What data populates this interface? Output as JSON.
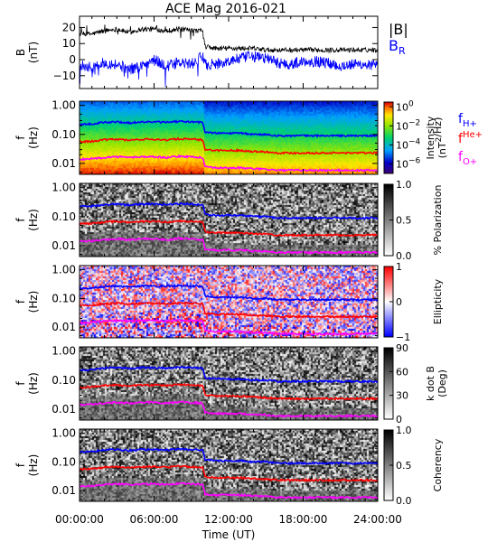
{
  "figure": {
    "title": "ACE Mag 2016-021",
    "xlabel": "Time (UT)",
    "x_ticks": [
      "00:00:00",
      "06:00:00",
      "12:00:00",
      "18:00:00",
      "24:00:00"
    ],
    "x_range_hours": [
      0,
      24
    ]
  },
  "colors": {
    "B_total": "#000000",
    "B_R": "#0000ff",
    "f_H": "#0000ff",
    "f_He": "#ff0000",
    "f_O": "#ff00ff"
  },
  "chart_data": [
    {
      "type": "line",
      "panel": "magnetic-field",
      "ylabel": "B\n(nT)",
      "ylim": [
        -18,
        27
      ],
      "y_ticks": [
        "20",
        "10",
        "0",
        "−10"
      ],
      "y_tick_values": [
        20,
        10,
        0,
        -10
      ],
      "legend": [
        "|B|",
        "B_R"
      ],
      "series": [
        {
          "name": "|B|",
          "x": [
            0,
            1,
            2,
            3,
            4,
            5,
            6,
            7,
            8,
            9,
            9.9,
            10.1,
            11,
            12,
            13,
            14,
            15,
            16,
            17,
            18,
            19,
            20,
            21,
            22,
            23,
            24
          ],
          "values": [
            16,
            16,
            18,
            19,
            17,
            19,
            19,
            18,
            19,
            18,
            18,
            8,
            7,
            7,
            7,
            7,
            6,
            6,
            6,
            6,
            6,
            6,
            6,
            6,
            6,
            6
          ]
        },
        {
          "name": "B_R",
          "x": [
            0,
            1,
            2,
            3,
            4,
            5,
            6,
            7,
            8,
            9,
            9.9,
            10.1,
            11,
            12,
            13,
            14,
            15,
            16,
            17,
            18,
            19,
            20,
            21,
            22,
            23,
            24
          ],
          "values": [
            -3,
            -5,
            -2,
            -3,
            -6,
            -4,
            0,
            -4,
            -2,
            -3,
            2,
            -3,
            -3,
            -1,
            1,
            2,
            1,
            -2,
            -3,
            -1,
            -1,
            -2,
            -4,
            -3,
            -3,
            -4
          ]
        }
      ]
    },
    {
      "type": "heatmap",
      "panel": "intensity",
      "ylabel": "f\n(Hz)",
      "y_ticks": [
        "1.00",
        "0.10",
        "0.01"
      ],
      "colorbar_label": "Intensity\n(nT²/Hz)",
      "colorbar_ticks": [
        "10⁰",
        "10⁻²",
        "10⁻⁴",
        "10⁻⁶"
      ],
      "colorbar_range_log": [
        -7,
        0.5
      ],
      "legend": [
        "f_H+",
        "f_He+",
        "f_O+"
      ]
    },
    {
      "type": "heatmap",
      "panel": "polarization",
      "ylabel": "f\n(Hz)",
      "y_ticks": [
        "1.00",
        "0.10",
        "0.01"
      ],
      "colorbar_label": "% Polarization",
      "colorbar_ticks": [
        "1.0",
        "0.5",
        "0.0"
      ],
      "colorbar_range": [
        0,
        1
      ]
    },
    {
      "type": "heatmap",
      "panel": "ellipticity",
      "ylabel": "f\n(Hz)",
      "y_ticks": [
        "1.00",
        "0.10",
        "0.01"
      ],
      "colorbar_label": "Ellipticity",
      "colorbar_ticks": [
        "1",
        "0",
        "−1"
      ],
      "colorbar_range": [
        -1,
        1
      ]
    },
    {
      "type": "heatmap",
      "panel": "k-dot-b",
      "ylabel": "f\n(Hz)",
      "y_ticks": [
        "1.00",
        "0.10",
        "0.01"
      ],
      "colorbar_label": "k dot B\n(Deg)",
      "colorbar_ticks": [
        "90",
        "60",
        "30",
        "0"
      ],
      "colorbar_range": [
        0,
        90
      ]
    },
    {
      "type": "heatmap",
      "panel": "coherency",
      "ylabel": "f\n(Hz)",
      "y_ticks": [
        "1.00",
        "0.10",
        "0.01"
      ],
      "colorbar_label": "Coherency",
      "colorbar_ticks": [
        "1.0",
        "0.5",
        "0.0"
      ],
      "colorbar_range": [
        0,
        1
      ]
    }
  ],
  "gyrofrequency_lines": {
    "x_hours": [
      0,
      1,
      2,
      3,
      4,
      5,
      6,
      7,
      8,
      9,
      9.9,
      10.1,
      11,
      12,
      13,
      14,
      15,
      16,
      17,
      18,
      19,
      20,
      21,
      22,
      23,
      24
    ],
    "f_H_hz": [
      0.22,
      0.23,
      0.26,
      0.27,
      0.25,
      0.27,
      0.27,
      0.26,
      0.28,
      0.27,
      0.26,
      0.12,
      0.11,
      0.11,
      0.11,
      0.1,
      0.1,
      0.09,
      0.09,
      0.09,
      0.09,
      0.09,
      0.09,
      0.09,
      0.09,
      0.09
    ],
    "f_He_hz": [
      0.056,
      0.058,
      0.065,
      0.068,
      0.063,
      0.068,
      0.068,
      0.065,
      0.07,
      0.068,
      0.065,
      0.03,
      0.028,
      0.028,
      0.028,
      0.026,
      0.025,
      0.023,
      0.023,
      0.023,
      0.023,
      0.023,
      0.023,
      0.023,
      0.023,
      0.023
    ],
    "f_O_hz": [
      0.014,
      0.0145,
      0.016,
      0.017,
      0.016,
      0.017,
      0.017,
      0.016,
      0.0175,
      0.017,
      0.016,
      0.0075,
      0.007,
      0.007,
      0.007,
      0.0065,
      0.0063,
      0.0058,
      0.0058,
      0.0058,
      0.0058,
      0.0058,
      0.0058,
      0.0058,
      0.0058,
      0.0058
    ]
  }
}
